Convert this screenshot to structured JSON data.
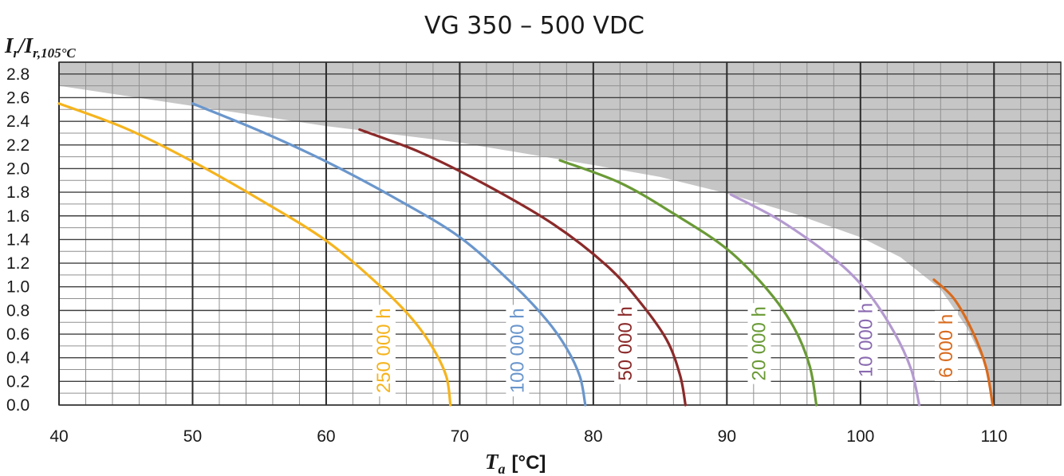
{
  "chart_data": {
    "type": "line",
    "title": "VG 350 – 500 VDC",
    "ylabel": {
      "main": "I",
      "main_sub": "r",
      "slash": "/",
      "denom": "I",
      "denom_sub": "r,105°C"
    },
    "xlabel": {
      "main": "T",
      "main_sub": "a",
      "unit": "[°C]"
    },
    "xlim": [
      40,
      115
    ],
    "ylim": [
      0,
      2.9
    ],
    "x_ticks": [
      40,
      50,
      60,
      70,
      80,
      90,
      100,
      110
    ],
    "x_tick_labels": [
      "40",
      "50",
      "60",
      "70",
      "80",
      "90",
      "100",
      "110"
    ],
    "y_ticks": [
      0,
      0.2,
      0.4,
      0.6,
      0.8,
      1.0,
      1.2,
      1.4,
      1.6,
      1.8,
      2.0,
      2.2,
      2.4,
      2.6,
      2.8
    ],
    "y_tick_labels": [
      "0.0",
      "0.2",
      "0.4",
      "0.6",
      "0.8",
      "1.0",
      "1.2",
      "1.4",
      "1.6",
      "1.8",
      "2.0",
      "2.2",
      "2.4",
      "2.6",
      "2.8"
    ],
    "grid": true,
    "shaded_region": {
      "color": "#c6c6c6",
      "description_points": [
        [
          40,
          2.7
        ],
        [
          50,
          2.53
        ],
        [
          60,
          2.36
        ],
        [
          70,
          2.22
        ],
        [
          80,
          2.03
        ],
        [
          85,
          1.93
        ],
        [
          90,
          1.79
        ],
        [
          95,
          1.62
        ],
        [
          100,
          1.42
        ],
        [
          103,
          1.25
        ],
        [
          106,
          0.98
        ],
        [
          108,
          0.65
        ],
        [
          109.5,
          0.3
        ],
        [
          110,
          0.0
        ]
      ]
    },
    "series": [
      {
        "name": "250 000 h",
        "color": "#f5b41e",
        "points": [
          [
            40,
            2.55
          ],
          [
            45,
            2.34
          ],
          [
            50,
            2.06
          ],
          [
            55,
            1.74
          ],
          [
            60,
            1.39
          ],
          [
            64,
            1.01
          ],
          [
            66.5,
            0.72
          ],
          [
            68,
            0.48
          ],
          [
            69,
            0.24
          ],
          [
            69.3,
            0.0
          ]
        ]
      },
      {
        "name": "100 000 h",
        "color": "#6a96cc",
        "points": [
          [
            50,
            2.55
          ],
          [
            55,
            2.32
          ],
          [
            60,
            2.06
          ],
          [
            65,
            1.76
          ],
          [
            70,
            1.42
          ],
          [
            74,
            1.02
          ],
          [
            76.5,
            0.72
          ],
          [
            78,
            0.48
          ],
          [
            79,
            0.24
          ],
          [
            79.4,
            0.0
          ]
        ]
      },
      {
        "name": "50 000 h",
        "color": "#8b2a2a",
        "points": [
          [
            62.5,
            2.33
          ],
          [
            67,
            2.14
          ],
          [
            72,
            1.86
          ],
          [
            77,
            1.53
          ],
          [
            81,
            1.18
          ],
          [
            83.5,
            0.87
          ],
          [
            85.5,
            0.55
          ],
          [
            86.5,
            0.25
          ],
          [
            86.9,
            0.0
          ]
        ]
      },
      {
        "name": "20 000 h",
        "color": "#6a9a36",
        "points": [
          [
            77.5,
            2.07
          ],
          [
            82,
            1.88
          ],
          [
            86,
            1.62
          ],
          [
            90,
            1.32
          ],
          [
            93,
            0.98
          ],
          [
            95,
            0.66
          ],
          [
            96.2,
            0.33
          ],
          [
            96.7,
            0.0
          ]
        ]
      },
      {
        "name": "10 000 h",
        "color": "#b49ad0",
        "points": [
          [
            90.3,
            1.78
          ],
          [
            94,
            1.56
          ],
          [
            98,
            1.24
          ],
          [
            100.5,
            0.96
          ],
          [
            102.5,
            0.62
          ],
          [
            103.8,
            0.3
          ],
          [
            104.4,
            0.0
          ]
        ]
      },
      {
        "name": "6 000 h",
        "color": "#d86b1e",
        "points": [
          [
            105.5,
            1.06
          ],
          [
            107,
            0.9
          ],
          [
            108.4,
            0.62
          ],
          [
            109.4,
            0.32
          ],
          [
            109.9,
            0.0
          ]
        ]
      }
    ],
    "curve_labels": [
      {
        "text": "250 000 h",
        "color": "#f5b41e",
        "x": 64.3,
        "y": 0.46
      },
      {
        "text": "100 000 h",
        "color": "#6a96cc",
        "x": 74.3,
        "y": 0.46
      },
      {
        "text": "50 000 h",
        "color": "#8b2a2a",
        "x": 82.4,
        "y": 0.52
      },
      {
        "text": "20 000 h",
        "color": "#6a9a36",
        "x": 92.4,
        "y": 0.52
      },
      {
        "text": "10 000 h",
        "color": "#8a6ab0",
        "x": 100.4,
        "y": 0.55
      },
      {
        "text": "6 000 h",
        "color": "#d86b1e",
        "x": 106.4,
        "y": 0.5
      }
    ]
  }
}
